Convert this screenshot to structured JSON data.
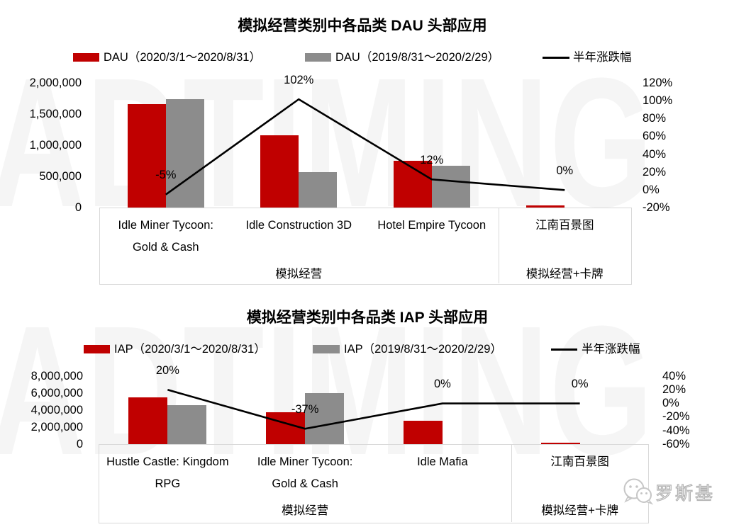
{
  "watermark": {
    "text": "ADTIMING"
  },
  "footer": {
    "brand": "罗斯基"
  },
  "chart_data": [
    {
      "type": "bar+line",
      "title": "模拟经营类别中各品类 DAU 头部应用",
      "legend": [
        {
          "type": "bar",
          "color": "#c00000",
          "label": "DAU（2020/3/1～2020/8/31）"
        },
        {
          "type": "bar",
          "color": "#8c8c8c",
          "label": "DAU（2019/8/31～2020/2/29）"
        },
        {
          "type": "line",
          "color": "#000000",
          "label": "半年涨跌幅"
        }
      ],
      "categories": [
        "Idle Miner Tycoon: Gold & Cash",
        "Idle Construction 3D",
        "Hotel Empire Tycoon",
        "江南百景图"
      ],
      "category_lines": [
        [
          "Idle Miner Tycoon:",
          "Gold & Cash"
        ],
        [
          "Idle Construction 3D"
        ],
        [
          "Hotel Empire Tycoon"
        ],
        [
          "江南百景图"
        ]
      ],
      "groups": [
        {
          "label": "模拟经营",
          "span": 3
        },
        {
          "label": "模拟经营+卡牌",
          "span": 1
        }
      ],
      "series": [
        {
          "name": "DAU（2020/3/1～2020/8/31）",
          "values": [
            1660000,
            1160000,
            760000,
            40000
          ]
        },
        {
          "name": "DAU（2019/8/31～2020/2/29）",
          "values": [
            1750000,
            570000,
            680000,
            0
          ]
        }
      ],
      "line_series": {
        "name": "半年涨跌幅",
        "values_pct": [
          -5,
          102,
          12,
          0
        ],
        "labels": [
          "-5%",
          "102%",
          "12%",
          "0%"
        ]
      },
      "left_axis": {
        "ticks": [
          "2,000,000",
          "1,500,000",
          "1,000,000",
          "500,000",
          "0"
        ],
        "min": 0,
        "max": 2000000
      },
      "right_axis": {
        "ticks": [
          "120%",
          "100%",
          "80%",
          "60%",
          "40%",
          "20%",
          "0%",
          "-20%"
        ],
        "min": -20,
        "max": 120
      }
    },
    {
      "type": "bar+line",
      "title": "模拟经营类别中各品类 IAP 头部应用",
      "legend": [
        {
          "type": "bar",
          "color": "#c00000",
          "label": "IAP（2020/3/1～2020/8/31）"
        },
        {
          "type": "bar",
          "color": "#8c8c8c",
          "label": "IAP（2019/8/31～2020/2/29）"
        },
        {
          "type": "line",
          "color": "#000000",
          "label": "半年涨跌幅"
        }
      ],
      "categories": [
        "Hustle Castle: Kingdom RPG",
        "Idle Miner Tycoon: Gold & Cash",
        "Idle Mafia",
        "江南百景图"
      ],
      "category_lines": [
        [
          "Hustle Castle: Kingdom",
          "RPG"
        ],
        [
          "Idle Miner Tycoon:",
          "Gold & Cash"
        ],
        [
          "Idle Mafia"
        ],
        [
          "江南百景图"
        ]
      ],
      "groups": [
        {
          "label": "模拟经营",
          "span": 3
        },
        {
          "label": "模拟经营+卡牌",
          "span": 1
        }
      ],
      "series": [
        {
          "name": "IAP（2020/3/1～2020/8/31）",
          "values": [
            5500000,
            3750000,
            2750000,
            200000
          ]
        },
        {
          "name": "IAP（2019/8/31～2020/2/29）",
          "values": [
            4600000,
            6000000,
            0,
            0
          ]
        }
      ],
      "line_series": {
        "name": "半年涨跌幅",
        "values_pct": [
          20,
          -37,
          0,
          0
        ],
        "labels": [
          "20%",
          "-37%",
          "0%",
          "0%"
        ]
      },
      "left_axis": {
        "ticks": [
          "8,000,000",
          "6,000,000",
          "4,000,000",
          "2,000,000",
          "0"
        ],
        "min": 0,
        "max": 8000000
      },
      "right_axis": {
        "ticks": [
          "40%",
          "20%",
          "0%",
          "-20%",
          "-40%",
          "-60%"
        ],
        "min": -60,
        "max": 40
      }
    }
  ]
}
